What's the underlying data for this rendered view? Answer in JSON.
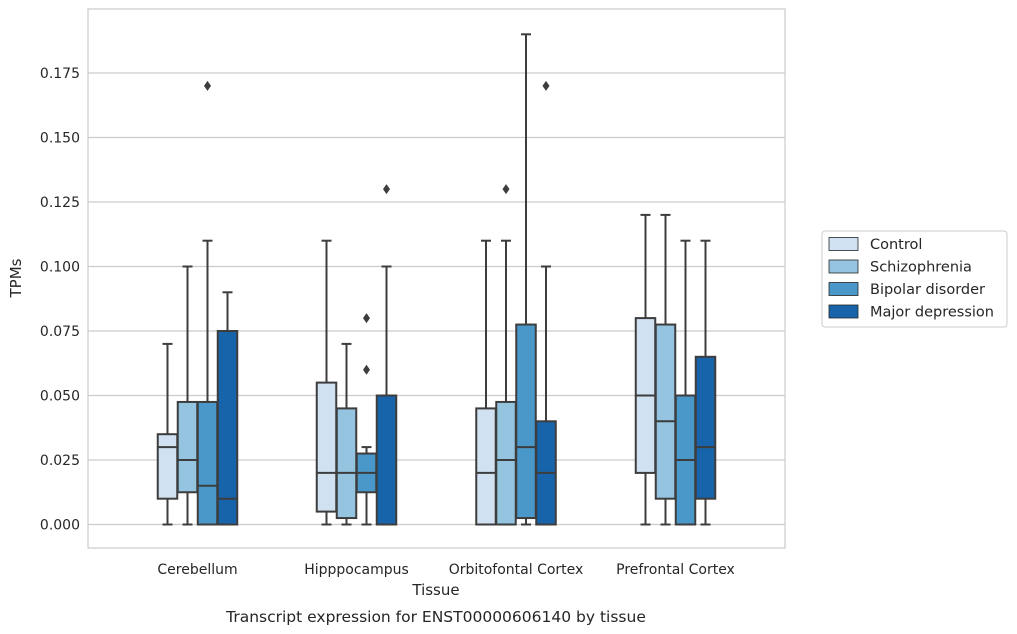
{
  "chart_data": {
    "type": "boxplot",
    "xlabel": "Tissue",
    "ylabel": "TPMs",
    "caption": "Transcript expression for ENST00000606140 by tissue",
    "ylim": [
      -0.009,
      0.198
    ],
    "yticks": [
      "0.000",
      "0.025",
      "0.050",
      "0.075",
      "0.100",
      "0.125",
      "0.150",
      "0.175"
    ],
    "grid": "horizontal",
    "legend_position": "right",
    "categories": [
      "Cerebellum",
      "Hipppocampus",
      "Orbitofontal Cortex",
      "Prefrontal Cortex"
    ],
    "series": [
      {
        "name": "Control",
        "color": "#d0e1f2",
        "boxes": [
          {
            "whislo": 0.0,
            "q1": 0.01,
            "med": 0.03,
            "q3": 0.035,
            "whishi": 0.07,
            "fliers": []
          },
          {
            "whislo": 0.0,
            "q1": 0.005,
            "med": 0.02,
            "q3": 0.055,
            "whishi": 0.11,
            "fliers": []
          },
          {
            "whislo": 0.0,
            "q1": 0.0,
            "med": 0.02,
            "q3": 0.045,
            "whishi": 0.11,
            "fliers": []
          },
          {
            "whislo": 0.0,
            "q1": 0.02,
            "med": 0.05,
            "q3": 0.08,
            "whishi": 0.12,
            "fliers": []
          }
        ]
      },
      {
        "name": "Schizophrenia",
        "color": "#94c4df",
        "boxes": [
          {
            "whislo": 0.0,
            "q1": 0.0125,
            "med": 0.025,
            "q3": 0.0475,
            "whishi": 0.1,
            "fliers": []
          },
          {
            "whislo": 0.0,
            "q1": 0.0025,
            "med": 0.02,
            "q3": 0.045,
            "whishi": 0.07,
            "fliers": []
          },
          {
            "whislo": 0.0,
            "q1": 0.0,
            "med": 0.025,
            "q3": 0.0475,
            "whishi": 0.11,
            "fliers": [
              0.13
            ]
          },
          {
            "whislo": 0.0,
            "q1": 0.01,
            "med": 0.04,
            "q3": 0.0775,
            "whishi": 0.12,
            "fliers": []
          }
        ]
      },
      {
        "name": "Bipolar disorder",
        "color": "#4a98c9",
        "boxes": [
          {
            "whislo": 0.0,
            "q1": 0.0,
            "med": 0.015,
            "q3": 0.0475,
            "whishi": 0.11,
            "fliers": [
              0.17
            ]
          },
          {
            "whislo": 0.0,
            "q1": 0.0125,
            "med": 0.02,
            "q3": 0.0275,
            "whishi": 0.03,
            "fliers": [
              0.06,
              0.08
            ]
          },
          {
            "whislo": 0.0,
            "q1": 0.0025,
            "med": 0.03,
            "q3": 0.0775,
            "whishi": 0.19,
            "fliers": []
          },
          {
            "whislo": 0.0,
            "q1": 0.0,
            "med": 0.025,
            "q3": 0.05,
            "whishi": 0.11,
            "fliers": []
          }
        ]
      },
      {
        "name": "Major depression",
        "color": "#1764ab",
        "boxes": [
          {
            "whislo": 0.0,
            "q1": 0.0,
            "med": 0.01,
            "q3": 0.075,
            "whishi": 0.09,
            "fliers": []
          },
          {
            "whislo": 0.0,
            "q1": 0.0,
            "med": 0.0,
            "q3": 0.05,
            "whishi": 0.1,
            "fliers": [
              0.13
            ]
          },
          {
            "whislo": 0.0,
            "q1": 0.0,
            "med": 0.02,
            "q3": 0.04,
            "whishi": 0.1,
            "fliers": [
              0.17
            ]
          },
          {
            "whislo": 0.0,
            "q1": 0.01,
            "med": 0.03,
            "q3": 0.065,
            "whishi": 0.11,
            "fliers": []
          }
        ]
      }
    ]
  }
}
